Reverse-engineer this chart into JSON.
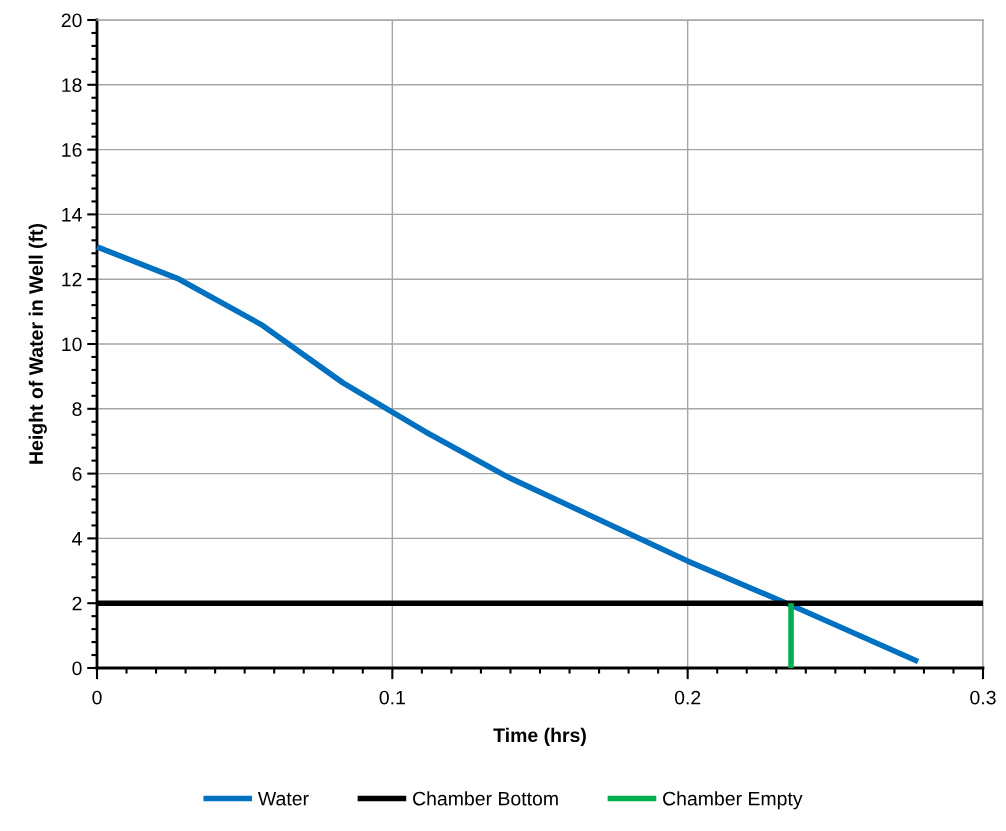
{
  "chart_data": {
    "type": "line",
    "xlabel": "Time (hrs)",
    "ylabel": "Height of Water in Well (ft)",
    "series": [
      {
        "name": "Water",
        "color": "#0070c0",
        "x": [
          0,
          0.0278,
          0.0556,
          0.0833,
          0.1,
          0.111,
          0.139,
          0.2,
          0.236,
          0.278
        ],
        "values": [
          13,
          12.0,
          10.6,
          8.8,
          7.9,
          7.3,
          5.9,
          3.3,
          1.9,
          0.2
        ]
      },
      {
        "name": "Chamber Bottom",
        "color": "#000000",
        "x": [
          0,
          0.3
        ],
        "values": [
          2,
          2
        ]
      },
      {
        "name": "Chamber Empty",
        "color": "#00b050",
        "x": [
          0.235,
          0.235
        ],
        "values": [
          0,
          2
        ]
      }
    ],
    "xlim": [
      0,
      0.3
    ],
    "xticks": [
      0,
      0.1,
      0.2,
      0.3
    ],
    "ylim": [
      0,
      20
    ],
    "yticks": [
      0,
      2,
      4,
      6,
      8,
      10,
      12,
      14,
      16,
      18,
      20
    ],
    "grid": true,
    "legend": "bottom",
    "marker": "none",
    "line_style": "solid"
  }
}
